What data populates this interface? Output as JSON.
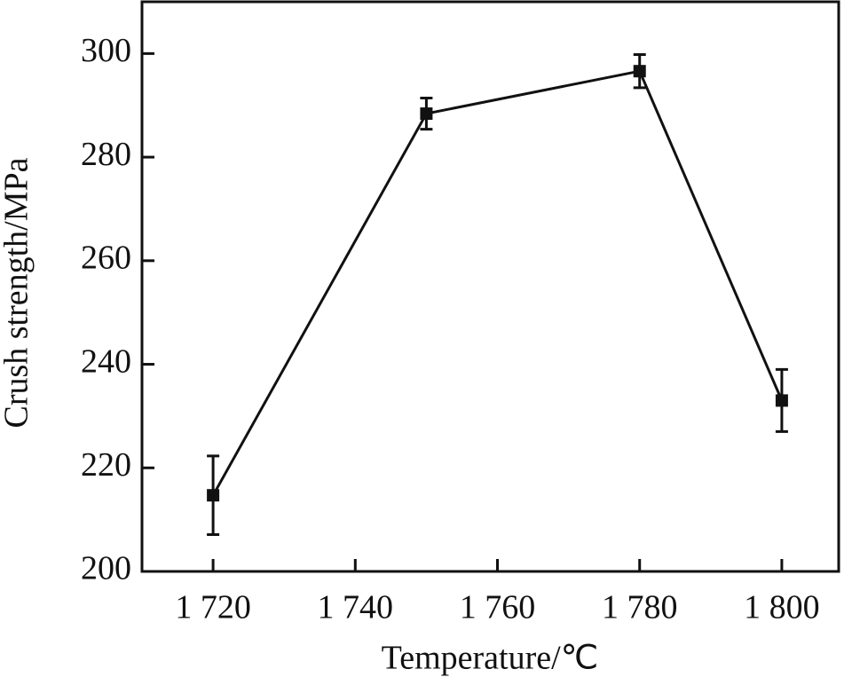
{
  "chart_data": {
    "type": "line",
    "x_label": "Temperature/℃",
    "y_label": "Crush strength/MPa",
    "x": [
      1720,
      1750,
      1780,
      1800
    ],
    "series": [
      {
        "color": "#111111",
        "values": [
          214.7,
          288.4,
          296.6,
          233
        ],
        "errors": [
          7.6,
          3,
          3.2,
          6
        ]
      }
    ],
    "xlim": [
      1710,
      1808
    ],
    "xticks": [
      {
        "value": 1720,
        "label": "1 720"
      },
      {
        "value": 1740,
        "label": "1 740"
      },
      {
        "value": 1760,
        "label": "1 760"
      },
      {
        "value": 1780,
        "label": "1 780"
      },
      {
        "value": 1800,
        "label": "1 800"
      }
    ],
    "ylim": [
      200,
      310
    ],
    "yticks": [
      200,
      220,
      240,
      260,
      280,
      300
    ]
  }
}
